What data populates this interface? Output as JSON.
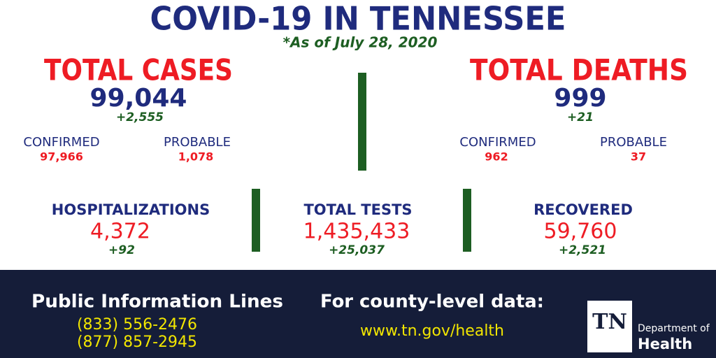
{
  "header": {
    "title": "COVID-19 IN TENNESSEE",
    "subtitle": "*As of July 28, 2020"
  },
  "cases": {
    "title": "TOTAL CASES",
    "total": "99,044",
    "change": "+2,555",
    "confirmed": {
      "label": "CONFIRMED",
      "value": "97,966"
    },
    "probable": {
      "label": "PROBABLE",
      "value": "1,078"
    }
  },
  "deaths": {
    "title": "TOTAL DEATHS",
    "total": "999",
    "change": "+21",
    "confirmed": {
      "label": "CONFIRMED",
      "value": "962"
    },
    "probable": {
      "label": "PROBABLE",
      "value": "37"
    }
  },
  "stats": [
    {
      "label": "HOSPITALIZATIONS",
      "value": "4,372",
      "change": "+92"
    },
    {
      "label": "TOTAL TESTS",
      "value": "1,435,433",
      "change": "+25,037"
    },
    {
      "label": "RECOVERED",
      "value": "59,760",
      "change": "+2,521"
    }
  ],
  "footer": {
    "phone_heading": "Public Information Lines",
    "phones": [
      "(833) 556-2476",
      "(877) 857-2945"
    ],
    "web_heading": "For county-level data:",
    "url": "www.tn.gov/health",
    "logo": {
      "mark": "TN",
      "line1": "Department of",
      "line2": "Health"
    }
  }
}
